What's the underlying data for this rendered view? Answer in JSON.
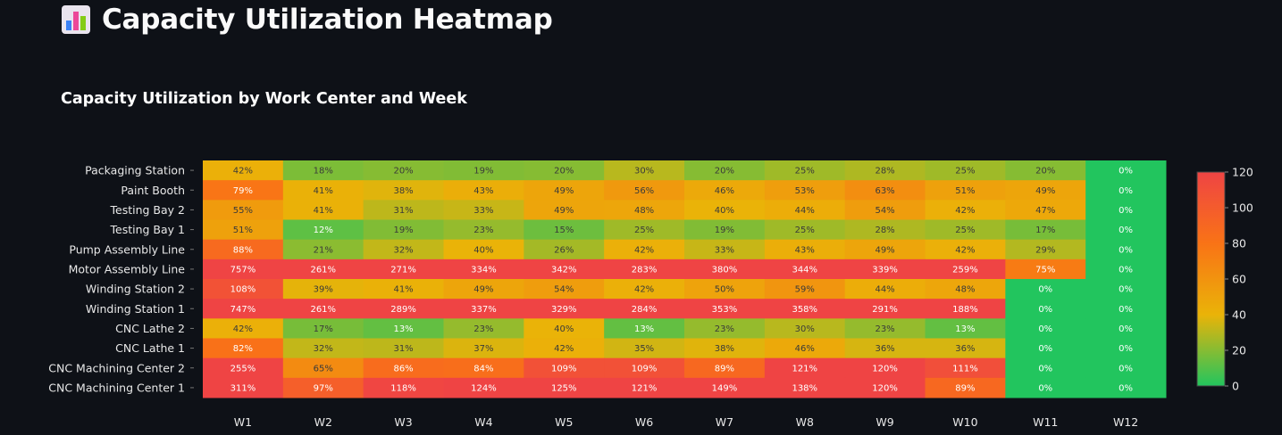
{
  "page": {
    "title": "Capacity Utilization Heatmap",
    "title_icon": "bar-chart-icon"
  },
  "chart_data": {
    "type": "heatmap",
    "title": "Capacity Utilization by Work Center and Week",
    "x": [
      "W1",
      "W2",
      "W3",
      "W4",
      "W5",
      "W6",
      "W7",
      "W8",
      "W9",
      "W10",
      "W11",
      "W12"
    ],
    "y": [
      "Packaging Station",
      "Paint Booth",
      "Testing Bay 2",
      "Testing Bay 1",
      "Pump Assembly Line",
      "Motor Assembly Line",
      "Winding Station 2",
      "Winding Station 1",
      "CNC Lathe 2",
      "CNC Lathe 1",
      "CNC Machining Center 2",
      "CNC Machining Center 1"
    ],
    "values": [
      [
        42,
        18,
        20,
        19,
        20,
        30,
        20,
        25,
        28,
        25,
        20,
        0
      ],
      [
        79,
        41,
        38,
        43,
        49,
        56,
        46,
        53,
        63,
        51,
        49,
        0
      ],
      [
        55,
        41,
        31,
        33,
        49,
        48,
        40,
        44,
        54,
        42,
        47,
        0
      ],
      [
        51,
        12,
        19,
        23,
        15,
        25,
        19,
        25,
        28,
        25,
        17,
        0
      ],
      [
        88,
        21,
        32,
        40,
        26,
        42,
        33,
        43,
        49,
        42,
        29,
        0
      ],
      [
        757,
        261,
        271,
        334,
        342,
        283,
        380,
        344,
        339,
        259,
        75,
        0
      ],
      [
        108,
        39,
        41,
        49,
        54,
        42,
        50,
        59,
        44,
        48,
        0,
        0
      ],
      [
        747,
        261,
        289,
        337,
        329,
        284,
        353,
        358,
        291,
        188,
        0,
        0
      ],
      [
        42,
        17,
        13,
        23,
        40,
        13,
        23,
        30,
        23,
        13,
        0,
        0
      ],
      [
        82,
        32,
        31,
        37,
        42,
        35,
        38,
        46,
        36,
        36,
        0,
        0
      ],
      [
        255,
        65,
        86,
        84,
        109,
        109,
        89,
        121,
        120,
        111,
        0,
        0
      ],
      [
        311,
        97,
        118,
        124,
        125,
        121,
        149,
        138,
        120,
        89,
        0,
        0
      ]
    ],
    "value_suffix": "%",
    "zmin": 0,
    "zmax": 120,
    "colorbar_ticks": [
      0,
      20,
      40,
      60,
      80,
      100,
      120
    ],
    "colorscale": [
      "#22c55e",
      "#eab308",
      "#f97316",
      "#ef4444"
    ]
  }
}
